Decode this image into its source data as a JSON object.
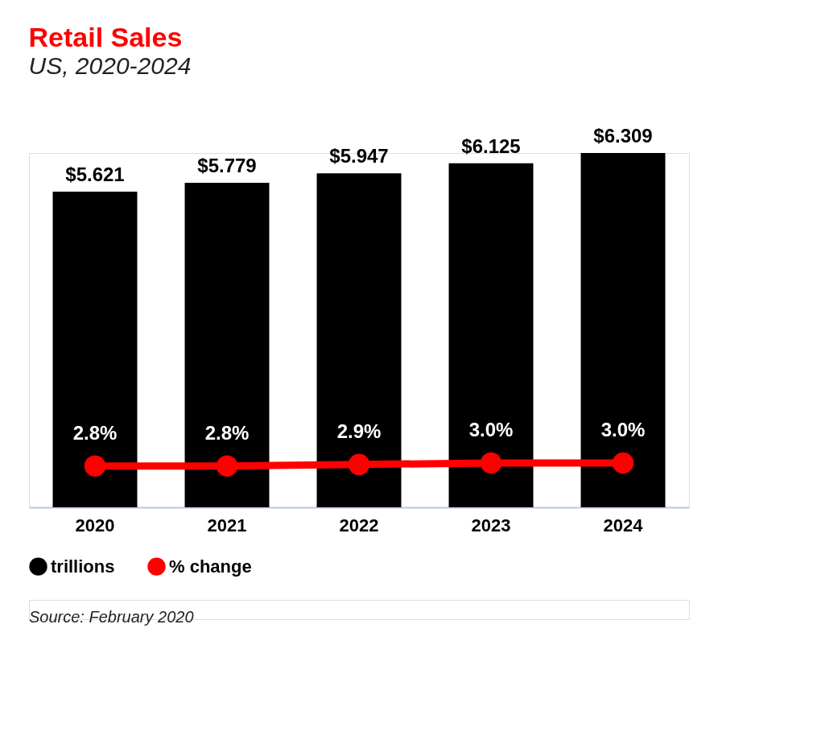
{
  "chart_data": {
    "type": "bar",
    "title": "Retail Sales",
    "subtitle": "US, 2020-2024",
    "categories": [
      "2020",
      "2021",
      "2022",
      "2023",
      "2024"
    ],
    "series": [
      {
        "name": "trillions",
        "color": "#000000",
        "values": [
          5.621,
          5.779,
          5.947,
          6.125,
          6.309
        ],
        "value_labels": [
          "$5.621",
          "$5.779",
          "$5.947",
          "$6.125",
          "$6.309"
        ]
      },
      {
        "name": "% change",
        "type": "line",
        "axis": "y2",
        "color": "#ff0000",
        "marker": "circle",
        "values": [
          2.8,
          2.8,
          2.9,
          3.0,
          3.0
        ],
        "value_labels": [
          "2.8%",
          "2.8%",
          "2.9%",
          "3.0%",
          "3.0%"
        ]
      }
    ],
    "legend": "bottom left",
    "grid": false,
    "annotations": [
      "Source: February 2020"
    ]
  }
}
